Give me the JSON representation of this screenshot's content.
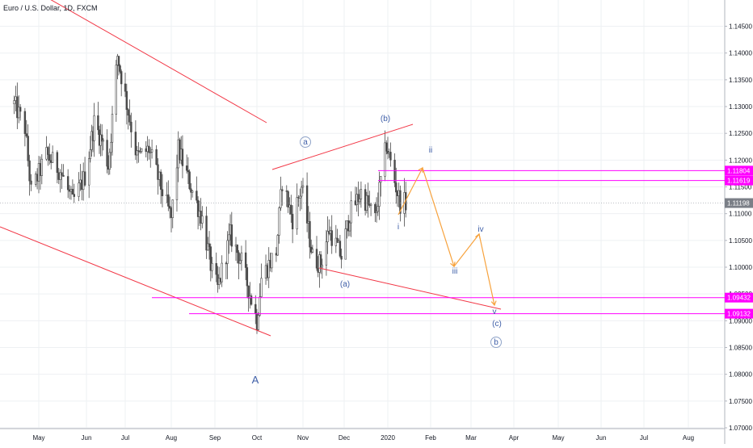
{
  "title": "Euro / U.S. Dollar, 1D, FXCM",
  "chart_data": {
    "type": "candlestick",
    "symbol": "Euro / U.S. Dollar",
    "interval": "1D",
    "source": "FXCM",
    "x_ticks": [
      "May",
      "Jun",
      "Jul",
      "Aug",
      "Sep",
      "Oct",
      "Nov",
      "Dec",
      "2020",
      "Feb",
      "Mar",
      "Apr",
      "May",
      "Jun",
      "Jul",
      "Aug"
    ],
    "y_ticks": [
      "1.14500",
      "1.14000",
      "1.13500",
      "1.13000",
      "1.12500",
      "1.12000",
      "1.11500",
      "1.11000",
      "1.10500",
      "1.10000",
      "1.09500",
      "1.09000",
      "1.08500",
      "1.08000",
      "1.07500",
      "1.07000"
    ],
    "ylim": [
      1.07,
      1.149
    ],
    "grid": true,
    "colors": {
      "up": "#4a4a4a",
      "down": "#4a4a4a",
      "trendline": "#f23645",
      "level": "#ff00ff",
      "projection": "#f7a23c",
      "label": "#3f5fa8",
      "grid": "#eef0f3"
    },
    "current_price": {
      "label": "1.11198",
      "value": 1.11198
    },
    "price_levels": [
      {
        "label": "1.11804",
        "value": 1.11804
      },
      {
        "label": "1.11619",
        "value": 1.11619
      },
      {
        "label": "1.09432",
        "value": 1.09432
      },
      {
        "label": "1.09132",
        "value": 1.09132
      }
    ],
    "wave_labels": [
      {
        "text": "a",
        "circled": true
      },
      {
        "text": "(b)",
        "circled": false
      },
      {
        "text": "(a)",
        "circled": false
      },
      {
        "text": "A",
        "circled": false
      },
      {
        "text": "i",
        "circled": false
      },
      {
        "text": "ii",
        "circled": false
      },
      {
        "text": "iii",
        "circled": false
      },
      {
        "text": "iv",
        "circled": false
      },
      {
        "text": "v",
        "circled": false
      },
      {
        "text": "(c)",
        "circled": false
      },
      {
        "text": "b",
        "circled": true
      }
    ],
    "ohlc_anchors": [
      [
        "2019-04-15",
        1.1305
      ],
      [
        "2019-04-22",
        1.126
      ],
      [
        "2019-04-26",
        1.114
      ],
      [
        "2019-05-06",
        1.121
      ],
      [
        "2019-05-15",
        1.118
      ],
      [
        "2019-05-23",
        1.112
      ],
      [
        "2019-05-31",
        1.117
      ],
      [
        "2019-06-07",
        1.127
      ],
      [
        "2019-06-14",
        1.123
      ],
      [
        "2019-06-18",
        1.119
      ],
      [
        "2019-06-25",
        1.1395
      ],
      [
        "2019-07-01",
        1.132
      ],
      [
        "2019-07-09",
        1.1205
      ],
      [
        "2019-07-17",
        1.122
      ],
      [
        "2019-07-25",
        1.115
      ],
      [
        "2019-08-01",
        1.109
      ],
      [
        "2019-08-06",
        1.122
      ],
      [
        "2019-08-13",
        1.1165
      ],
      [
        "2019-08-23",
        1.109
      ],
      [
        "2019-08-30",
        1.099
      ],
      [
        "2019-09-03",
        1.096
      ],
      [
        "2019-09-12",
        1.106
      ],
      [
        "2019-09-20",
        1.101
      ],
      [
        "2019-09-27",
        1.094
      ],
      [
        "2019-10-01",
        1.09
      ],
      [
        "2019-10-04",
        1.098
      ],
      [
        "2019-10-14",
        1.103
      ],
      [
        "2019-10-18",
        1.116
      ],
      [
        "2019-10-25",
        1.109
      ],
      [
        "2019-10-31",
        1.115
      ],
      [
        "2019-11-08",
        1.102
      ],
      [
        "2019-11-14",
        1.1005
      ],
      [
        "2019-11-20",
        1.107
      ],
      [
        "2019-11-29",
        1.102
      ],
      [
        "2019-12-05",
        1.11
      ],
      [
        "2019-12-13",
        1.114
      ],
      [
        "2019-12-18",
        1.1115
      ],
      [
        "2019-12-23",
        1.109
      ],
      [
        "2019-12-31",
        1.123
      ],
      [
        "2020-01-06",
        1.116
      ],
      [
        "2020-01-10",
        1.112
      ],
      [
        "2020-01-14",
        1.112
      ]
    ]
  }
}
